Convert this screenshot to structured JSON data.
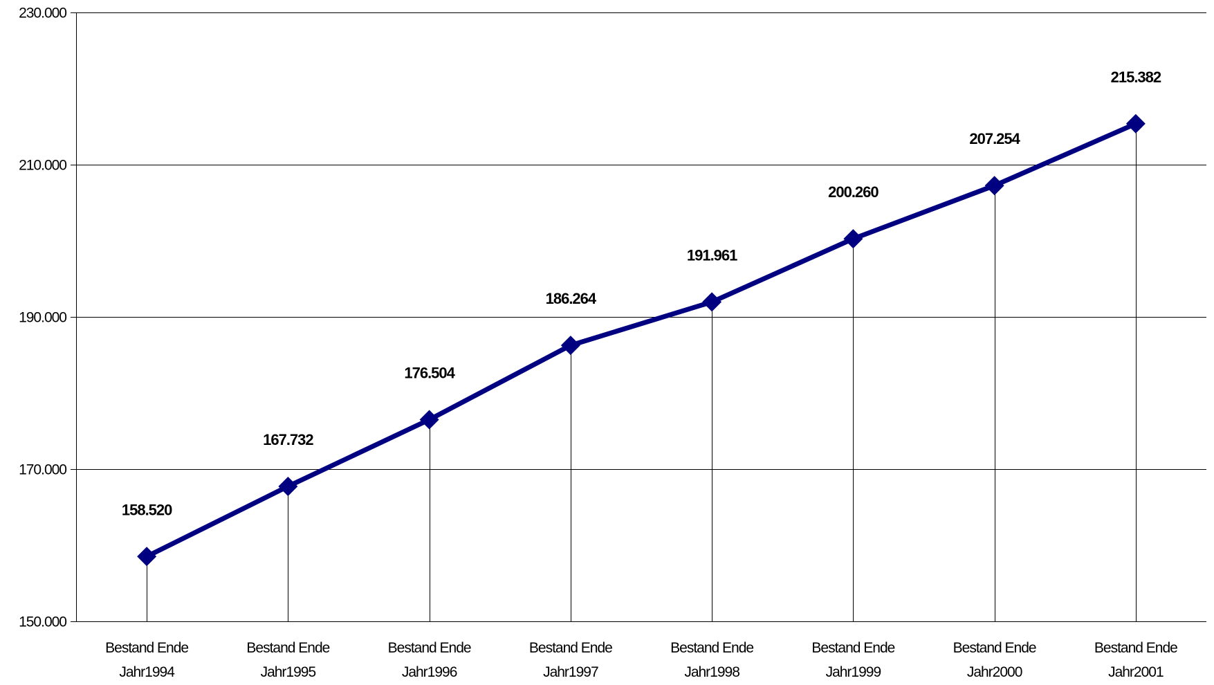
{
  "colors": {
    "series": "#000080",
    "grid": "#000000",
    "axis": "#000000",
    "background": "#ffffff"
  },
  "chart_data": {
    "type": "line",
    "title": "",
    "xlabel": "",
    "ylabel": "",
    "ylim": [
      150000,
      230000
    ],
    "yticks": [
      150000,
      170000,
      190000,
      210000,
      230000
    ],
    "ytick_labels": [
      "150.000",
      "170.000",
      "190.000",
      "210.000",
      "230.000"
    ],
    "grid": true,
    "legend": "none",
    "marker": "diamond",
    "drop_lines": true,
    "categories": [
      [
        "Bestand Ende",
        "Jahr1994"
      ],
      [
        "Bestand Ende",
        "Jahr1995"
      ],
      [
        "Bestand  Ende",
        "Jahr1996"
      ],
      [
        "Bestand  Ende",
        "Jahr1997"
      ],
      [
        "Bestand  Ende",
        "Jahr1998"
      ],
      [
        "Bestand  Ende",
        "Jahr1999"
      ],
      [
        "Bestand  Ende",
        "Jahr2000"
      ],
      [
        "Bestand  Ende",
        "Jahr2001"
      ]
    ],
    "series": [
      {
        "values": [
          158520,
          167732,
          176504,
          186264,
          191961,
          200260,
          207254,
          215382
        ],
        "labels": [
          "158.520",
          "167.732",
          "176.504",
          "186.264",
          "191.961",
          "200.260",
          "207.254",
          "215.382"
        ]
      }
    ]
  }
}
